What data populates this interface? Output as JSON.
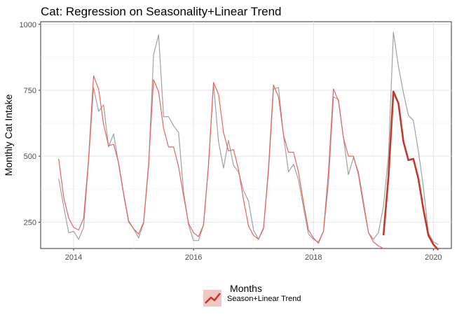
{
  "chart_data": {
    "type": "line",
    "title": "Cat: Regression on Seasonality+Linear Trend",
    "xlabel": "Months",
    "ylabel": "Monthly Cat Intake",
    "xlim": [
      2013.45,
      2020.3
    ],
    "ylim": [
      150,
      1010
    ],
    "x_ticks": [
      2014,
      2016,
      2018,
      2020
    ],
    "y_ticks": [
      250,
      500,
      750,
      1000
    ],
    "grid": true,
    "legend": {
      "position": "bottom",
      "entries": [
        "Season+Linear Trend"
      ]
    },
    "colors": {
      "actual": "#a0a0a0",
      "fitted": "#e8645a",
      "forecast": "#c0392b",
      "legend_bg": "#f2c7c3"
    },
    "series": [
      {
        "role": "actual",
        "x": [
          2013.75,
          2013.833,
          2013.917,
          2014.0,
          2014.083,
          2014.167,
          2014.25,
          2014.333,
          2014.417,
          2014.5,
          2014.583,
          2014.667,
          2014.75,
          2014.833,
          2014.917,
          2015.0,
          2015.083,
          2015.167,
          2015.25,
          2015.333,
          2015.417,
          2015.5,
          2015.583,
          2015.667,
          2015.75,
          2015.833,
          2015.917,
          2016.0,
          2016.083,
          2016.167,
          2016.25,
          2016.333,
          2016.417,
          2016.5,
          2016.583,
          2016.667,
          2016.75,
          2016.833,
          2016.917,
          2017.0,
          2017.083,
          2017.167,
          2017.25,
          2017.333,
          2017.417,
          2017.5,
          2017.583,
          2017.667,
          2017.75,
          2017.833,
          2017.917,
          2018.0,
          2018.083,
          2018.167,
          2018.25,
          2018.333,
          2018.417,
          2018.5,
          2018.583,
          2018.667,
          2018.75,
          2018.833,
          2018.917,
          2019.0,
          2019.083,
          2019.167,
          2019.25,
          2019.333,
          2019.417,
          2019.5,
          2019.583,
          2019.667,
          2019.75,
          2019.833,
          2019.917,
          2020.0,
          2020.083
        ],
        "values": [
          415,
          310,
          210,
          215,
          185,
          230,
          480,
          760,
          670,
          695,
          535,
          585,
          470,
          355,
          250,
          225,
          190,
          245,
          460,
          885,
          960,
          650,
          650,
          615,
          590,
          365,
          240,
          180,
          180,
          240,
          470,
          775,
          555,
          455,
          560,
          465,
          440,
          370,
          330,
          220,
          185,
          230,
          440,
          755,
          760,
          580,
          440,
          470,
          410,
          305,
          205,
          185,
          175,
          215,
          395,
          725,
          715,
          570,
          430,
          495,
          440,
          330,
          210,
          185,
          210,
          310,
          500,
          970,
          840,
          740,
          655,
          635,
          520,
          385,
          210,
          175,
          165
        ]
      },
      {
        "role": "fitted",
        "x": [
          2013.75,
          2013.833,
          2013.917,
          2014.0,
          2014.083,
          2014.167,
          2014.25,
          2014.333,
          2014.417,
          2014.5,
          2014.583,
          2014.667,
          2014.75,
          2014.833,
          2014.917,
          2015.0,
          2015.083,
          2015.167,
          2015.25,
          2015.333,
          2015.417,
          2015.5,
          2015.583,
          2015.667,
          2015.75,
          2015.833,
          2015.917,
          2016.0,
          2016.083,
          2016.167,
          2016.25,
          2016.333,
          2016.417,
          2016.5,
          2016.583,
          2016.667,
          2016.75,
          2016.833,
          2016.917,
          2017.0,
          2017.083,
          2017.167,
          2017.25,
          2017.333,
          2017.417,
          2017.5,
          2017.583,
          2017.667,
          2017.75,
          2017.833,
          2017.917,
          2018.0,
          2018.083,
          2018.167,
          2018.25,
          2018.333,
          2018.417,
          2018.5,
          2018.583,
          2018.667,
          2018.75,
          2018.833,
          2018.917,
          2019.0,
          2019.083,
          2019.167
        ],
        "values": [
          490,
          345,
          265,
          230,
          220,
          265,
          490,
          805,
          755,
          620,
          540,
          545,
          475,
          360,
          255,
          225,
          205,
          250,
          470,
          790,
          745,
          605,
          535,
          535,
          460,
          350,
          245,
          210,
          195,
          240,
          465,
          780,
          735,
          590,
          520,
          525,
          450,
          335,
          235,
          200,
          185,
          225,
          455,
          770,
          725,
          580,
          515,
          515,
          440,
          325,
          220,
          190,
          170,
          215,
          440,
          755,
          710,
          570,
          500,
          500,
          430,
          315,
          210,
          175,
          160,
          150
        ]
      },
      {
        "role": "forecast",
        "x": [
          2019.167,
          2019.25,
          2019.333,
          2019.417,
          2019.5,
          2019.583,
          2019.667,
          2019.75,
          2019.833,
          2019.917,
          2020.0,
          2020.083
        ],
        "values": [
          200,
          420,
          745,
          700,
          555,
          485,
          490,
          415,
          300,
          200,
          165,
          145
        ]
      }
    ]
  }
}
